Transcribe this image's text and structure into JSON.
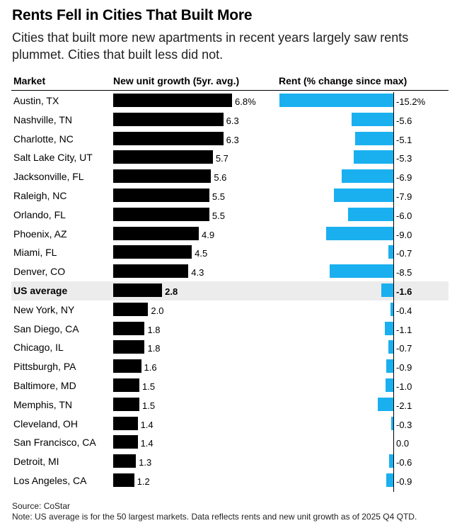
{
  "header": {
    "title": "Rents Fell in Cities That Built More",
    "subtitle": "Cities that built more new apartments in recent years largely saw rents plummet. Cities that built less did not."
  },
  "columns": {
    "market": "Market",
    "growth": "New unit growth (5yr. avg.)",
    "rent": "Rent (% change since max)"
  },
  "chart_data": {
    "type": "bar",
    "categories": [
      "Austin, TX",
      "Nashville, TN",
      "Charlotte, NC",
      "Salt Lake City, UT",
      "Jacksonville, FL",
      "Raleigh, NC",
      "Orlando, FL",
      "Phoenix, AZ",
      "Miami, FL",
      "Denver, CO",
      "US average",
      "New York, NY",
      "San Diego, CA",
      "Chicago, IL",
      "Pittsburgh, PA",
      "Baltimore, MD",
      "Memphis, TN",
      "Cleveland, OH",
      "San Francisco, CA",
      "Detroit, MI",
      "Los Angeles, CA"
    ],
    "highlight": "US average",
    "series": [
      {
        "name": "New unit growth (5yr. avg.)",
        "color": "#000000",
        "values": [
          6.8,
          6.3,
          6.3,
          5.7,
          5.6,
          5.5,
          5.5,
          4.9,
          4.5,
          4.3,
          2.8,
          2.0,
          1.8,
          1.8,
          1.6,
          1.5,
          1.5,
          1.4,
          1.4,
          1.3,
          1.2
        ],
        "labels": [
          "6.8%",
          "6.3",
          "6.3",
          "5.7",
          "5.6",
          "5.5",
          "5.5",
          "4.9",
          "4.5",
          "4.3",
          "2.8",
          "2.0",
          "1.8",
          "1.8",
          "1.6",
          "1.5",
          "1.5",
          "1.4",
          "1.4",
          "1.3",
          "1.2"
        ]
      },
      {
        "name": "Rent (% change since max)",
        "color": "#1ab0f0",
        "values": [
          -15.2,
          -5.6,
          -5.1,
          -5.3,
          -6.9,
          -7.9,
          -6.0,
          -9.0,
          -0.7,
          -8.5,
          -1.6,
          -0.4,
          -1.1,
          -0.7,
          -0.9,
          -1.0,
          -2.1,
          -0.3,
          0.0,
          -0.6,
          -0.9
        ],
        "labels": [
          "-15.2%",
          "-5.6",
          "-5.1",
          "-5.3",
          "-6.9",
          "-7.9",
          "-6.0",
          "-9.0",
          "-0.7",
          "-8.5",
          "-1.6",
          "-0.4",
          "-1.1",
          "-0.7",
          "-0.9",
          "-1.0",
          "-2.1",
          "-0.3",
          "0.0",
          "-0.6",
          "-0.9"
        ]
      }
    ]
  },
  "footer": {
    "source": "Source: CoStar",
    "note": "Note: US average is for the 50 largest markets. Data reflects rents and new unit growth as of 2025 Q4 QTD."
  }
}
